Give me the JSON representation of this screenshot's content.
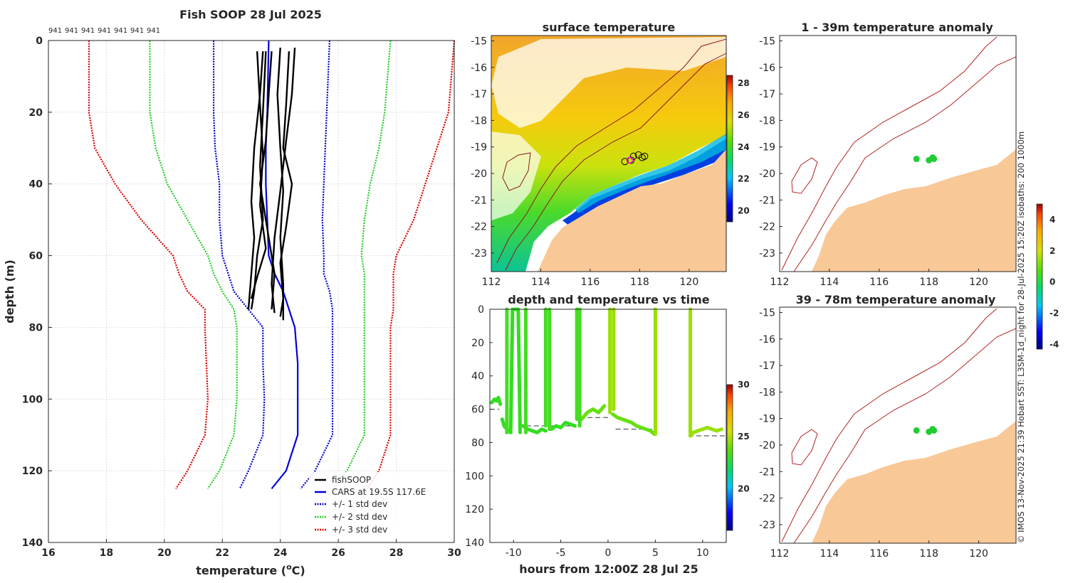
{
  "figure": {
    "credit_text": "© IMOS 13-Nov-2025 21:39 Hobart SST: L3SM-1d_night for 28-Jul-2025 15:20Z isobaths: 200  1000m"
  },
  "chart_data": [
    {
      "id": "profile",
      "type": "line",
      "title": "Fish SOOP 28 Jul 2025",
      "subtitle_ids": [
        "941",
        "941",
        "941",
        "941",
        "941",
        "941",
        "941"
      ],
      "xlabel": "temperature (°C)",
      "xlabel_main": "temperature (",
      "xlabel_sup": "o",
      "xlabel_tail": "C)",
      "ylabel": "depth (m)",
      "xlim": [
        16,
        30
      ],
      "ylim": [
        0,
        140
      ],
      "y_reversed": true,
      "xticks": [
        16,
        18,
        20,
        22,
        24,
        26,
        28,
        30
      ],
      "yticks": [
        0,
        20,
        40,
        60,
        80,
        100,
        120,
        140
      ],
      "grid": true,
      "legend_position": "bottom-right",
      "legend": [
        "fishSOOP",
        "CARS at 19.5S 117.6E",
        "+/- 1 std dev",
        "+/- 2 std dev",
        "+/- 3 std dev"
      ],
      "colors": {
        "fish": "#000000",
        "cars": "#0000dd",
        "sd1": "#0000cc",
        "sd2": "#22cc22",
        "sd3": "#dd0000"
      },
      "depth": [
        0,
        20,
        30,
        40,
        50,
        60,
        65,
        70,
        75,
        80,
        90,
        100,
        110,
        120,
        125
      ],
      "cars_mean": [
        23.6,
        23.55,
        23.5,
        23.5,
        23.55,
        23.6,
        23.8,
        24.1,
        24.3,
        24.5,
        24.6,
        24.6,
        24.6,
        24.2,
        23.7
      ],
      "sd1_left": [
        21.7,
        21.7,
        21.75,
        21.9,
        21.9,
        22.0,
        22.2,
        22.4,
        22.9,
        23.4,
        23.4,
        23.45,
        23.4,
        22.9,
        22.6
      ],
      "sd1_right": [
        25.7,
        25.6,
        25.55,
        25.5,
        25.45,
        25.5,
        25.5,
        25.7,
        25.8,
        25.8,
        25.8,
        25.8,
        25.8,
        25.2,
        24.7
      ],
      "sd2_left": [
        19.5,
        19.5,
        19.7,
        20.1,
        20.8,
        21.5,
        21.7,
        22.0,
        22.4,
        22.5,
        22.5,
        22.5,
        22.4,
        21.9,
        21.5
      ],
      "sd2_right": [
        27.8,
        27.6,
        27.4,
        27.1,
        26.9,
        26.8,
        26.9,
        26.9,
        26.9,
        26.9,
        26.9,
        26.9,
        26.9,
        26.3,
        25.8
      ],
      "sd3_left": [
        17.4,
        17.4,
        17.6,
        18.3,
        19.2,
        20.3,
        20.5,
        20.8,
        21.4,
        21.4,
        21.45,
        21.5,
        21.4,
        20.8,
        20.4
      ],
      "sd3_right": [
        30.0,
        29.8,
        29.4,
        29.0,
        28.6,
        28.0,
        27.9,
        27.9,
        27.9,
        27.8,
        27.8,
        27.8,
        27.8,
        27.4,
        27.0
      ],
      "fish_profiles": [
        [
          [
            3,
            23.4
          ],
          [
            15,
            23.3
          ],
          [
            30,
            23.1
          ],
          [
            45,
            23.0
          ],
          [
            55,
            23.1
          ],
          [
            65,
            23.0
          ],
          [
            75,
            22.9
          ]
        ],
        [
          [
            3,
            23.5
          ],
          [
            20,
            23.4
          ],
          [
            35,
            23.3
          ],
          [
            50,
            23.4
          ],
          [
            60,
            23.2
          ],
          [
            70,
            23.1
          ],
          [
            75,
            23.0
          ]
        ],
        [
          [
            3,
            23.7
          ],
          [
            15,
            23.6
          ],
          [
            28,
            23.5
          ],
          [
            40,
            23.3
          ],
          [
            55,
            23.6
          ],
          [
            65,
            23.8
          ],
          [
            75,
            23.7
          ]
        ],
        [
          [
            2,
            24.0
          ],
          [
            15,
            23.9
          ],
          [
            30,
            24.0
          ],
          [
            42,
            24.1
          ],
          [
            55,
            24.0
          ],
          [
            68,
            24.1
          ],
          [
            78,
            24.1
          ]
        ],
        [
          [
            3,
            24.3
          ],
          [
            18,
            24.2
          ],
          [
            30,
            24.1
          ],
          [
            40,
            24.4
          ],
          [
            52,
            24.2
          ],
          [
            62,
            24.0
          ],
          [
            72,
            24.1
          ],
          [
            77,
            24.0
          ]
        ],
        [
          [
            2,
            24.5
          ],
          [
            15,
            24.4
          ],
          [
            28,
            24.2
          ],
          [
            42,
            24.0
          ],
          [
            55,
            23.8
          ],
          [
            68,
            23.7
          ],
          [
            76,
            23.8
          ]
        ],
        [
          [
            3,
            23.2
          ],
          [
            18,
            23.3
          ],
          [
            32,
            23.4
          ],
          [
            46,
            23.3
          ],
          [
            58,
            23.5
          ],
          [
            66,
            23.2
          ],
          [
            72,
            23.0
          ]
        ]
      ]
    },
    {
      "id": "sst_map",
      "type": "heatmap",
      "title": "surface temperature",
      "xticks": [
        112,
        114,
        116,
        118,
        120
      ],
      "yticks": [
        -15,
        -16,
        -17,
        -18,
        -19,
        -20,
        -21,
        -22,
        -23
      ],
      "xlim": [
        112,
        121.5
      ],
      "ylim": [
        -23.7,
        -14.8
      ],
      "colorbar_ticks": [
        20,
        22,
        24,
        26,
        28
      ],
      "colorbar_range": [
        19.3,
        28.5
      ]
    },
    {
      "id": "depth_time",
      "type": "scatter",
      "title": "depth and temperature vs time",
      "xlabel": "hours from 12:00Z 28 Jul 25",
      "xticks": [
        -10,
        -5,
        0,
        5,
        10
      ],
      "yticks": [
        0,
        20,
        40,
        60,
        80,
        100,
        120,
        140
      ],
      "xlim": [
        -12.5,
        12.5
      ],
      "ylim": [
        0,
        140
      ],
      "colorbar_ticks": [
        20,
        25,
        30
      ],
      "colorbar_range": [
        16,
        30
      ],
      "bottom_depth_segments": [
        [
          -12.5,
          -11.5,
          60
        ],
        [
          -9.5,
          -4,
          70
        ],
        [
          -3,
          0,
          65
        ],
        [
          0.8,
          5,
          72
        ],
        [
          8.5,
          12.5,
          76
        ]
      ],
      "casts": [
        {
          "times": [
            -12.3,
            -12,
            -11.8,
            -11.6,
            -11.4
          ],
          "depths": [
            56,
            54,
            55,
            53,
            57
          ],
          "temp": 23.5
        },
        {
          "times": [
            -11.2,
            -11.0,
            -10.7,
            -10.5,
            -10.3,
            -10.1,
            -9.8,
            -9.5,
            -9.3
          ],
          "depths": [
            66,
            70,
            72,
            73,
            74,
            0,
            0,
            0,
            74
          ],
          "temp": 23.6
        },
        {
          "times": [
            -9.0,
            -8.5,
            -8.0,
            -7.5,
            -7.0,
            -6.6
          ],
          "depths": [
            70,
            72,
            73,
            74,
            72,
            73
          ],
          "temp": 23.7
        },
        {
          "times": [
            -6.0,
            -5.5,
            -5.0,
            -4.5,
            -4.0,
            -3.5
          ],
          "depths": [
            72,
            70,
            71,
            68,
            69,
            70
          ],
          "temp": 23.8
        },
        {
          "times": [
            -2.8,
            -2.2,
            -1.6,
            -1.0,
            -0.4
          ],
          "depths": [
            66,
            62,
            60,
            62,
            58
          ],
          "temp": 24.0
        },
        {
          "times": [
            0.5,
            1.0,
            1.5,
            2.0,
            2.5,
            3.0,
            3.5,
            4.0,
            4.5,
            4.9
          ],
          "depths": [
            63,
            65,
            66,
            67,
            68,
            70,
            71,
            72,
            73,
            75
          ],
          "temp": 24.3
        },
        {
          "times": [
            8.7,
            9.0,
            9.5,
            10.0,
            10.5,
            11.0,
            11.5,
            12.0
          ],
          "depths": [
            76,
            74,
            73,
            72,
            71,
            72,
            73,
            72
          ],
          "temp": 24.8
        }
      ],
      "vertical_casts": [
        -10.7,
        -8.7,
        -6.6,
        -6.2,
        -3.3,
        -3.0,
        0.2,
        0.6,
        5.0,
        8.7
      ]
    },
    {
      "id": "anom_shallow",
      "type": "heatmap",
      "title": "1 - 39m temperature anomaly",
      "xticks": [
        112,
        114,
        116,
        118,
        120
      ],
      "yticks": [
        -15,
        -16,
        -17,
        -18,
        -19,
        -20,
        -21,
        -22,
        -23
      ],
      "points": [
        [
          117.5,
          -19.45
        ],
        [
          118.0,
          -19.5
        ],
        [
          118.2,
          -19.45
        ],
        [
          118.15,
          -19.4
        ]
      ]
    },
    {
      "id": "anom_deep",
      "type": "heatmap",
      "title": "39 - 78m temperature anomaly",
      "xticks": [
        112,
        114,
        116,
        118,
        120
      ],
      "yticks": [
        -15,
        -16,
        -17,
        -18,
        -19,
        -20,
        -21,
        -22,
        -23
      ],
      "points": [
        [
          117.5,
          -19.45
        ],
        [
          118.0,
          -19.5
        ],
        [
          118.2,
          -19.45
        ],
        [
          118.15,
          -19.4
        ]
      ],
      "colorbar_ticks": [
        -4,
        -2,
        0,
        2,
        4
      ],
      "colorbar_range": [
        -4.3,
        5
      ]
    }
  ]
}
